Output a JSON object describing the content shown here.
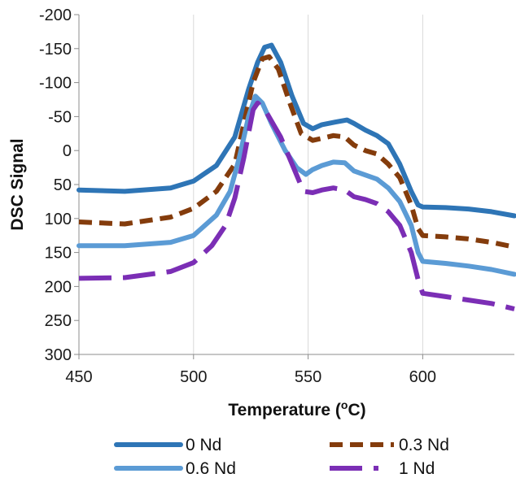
{
  "chart_data": {
    "type": "line",
    "title": "",
    "xlabel": "Temperature (",
    "xlabel_sup": "o",
    "xlabel_tail": "C)",
    "ylabel": "DSC Signal",
    "xlim": [
      450,
      640
    ],
    "ylim": [
      -200,
      300
    ],
    "y_inverted": true,
    "xticks": [
      450,
      500,
      550,
      600
    ],
    "xtick_labels": [
      "450",
      "500",
      "550",
      "600"
    ],
    "yticks": [
      -200,
      -150,
      -100,
      -50,
      0,
      50,
      100,
      150,
      200,
      250,
      300
    ],
    "ytick_labels": [
      "-200",
      "-150",
      "-100",
      "-50",
      "0",
      "50",
      "100",
      "150",
      "200",
      "250",
      "300"
    ],
    "grid": "vertical",
    "legend_placement": "bottom",
    "series": [
      {
        "name": "0 Nd",
        "color": "#2E75B6",
        "style": "solid",
        "x": [
          450,
          470,
          490,
          500,
          510,
          518,
          524,
          528,
          531,
          534,
          538,
          543,
          548,
          552,
          556,
          562,
          567,
          570,
          575,
          580,
          585,
          590,
          595,
          598,
          600,
          610,
          620,
          630,
          640
        ],
        "y": [
          58,
          60,
          55,
          45,
          22,
          -20,
          -90,
          -130,
          -152,
          -155,
          -130,
          -80,
          -40,
          -32,
          -38,
          -42,
          -45,
          -40,
          -30,
          -22,
          -10,
          20,
          60,
          80,
          83,
          84,
          86,
          90,
          96
        ]
      },
      {
        "name": "0.3 Nd",
        "color": "#843C0C",
        "style": "dashed",
        "x": [
          450,
          470,
          490,
          500,
          510,
          518,
          522,
          526,
          530,
          533,
          537,
          542,
          547,
          552,
          556,
          561,
          566,
          570,
          575,
          580,
          585,
          590,
          595,
          598,
          600,
          610,
          620,
          630,
          640
        ],
        "y": [
          105,
          108,
          98,
          85,
          60,
          20,
          -40,
          -100,
          -135,
          -138,
          -120,
          -70,
          -25,
          -15,
          -18,
          -22,
          -20,
          -8,
          0,
          5,
          20,
          40,
          80,
          115,
          125,
          127,
          130,
          135,
          142
        ]
      },
      {
        "name": "0.6 Nd",
        "color": "#5B9BD5",
        "style": "solid",
        "x": [
          450,
          470,
          490,
          500,
          510,
          516,
          520,
          524,
          527,
          530,
          534,
          540,
          545,
          549,
          552,
          556,
          561,
          566,
          570,
          575,
          580,
          585,
          590,
          595,
          598,
          600,
          610,
          620,
          630,
          640
        ],
        "y": [
          140,
          140,
          135,
          125,
          95,
          60,
          10,
          -50,
          -80,
          -70,
          -40,
          0,
          25,
          35,
          28,
          22,
          17,
          18,
          30,
          36,
          42,
          55,
          75,
          110,
          150,
          163,
          166,
          170,
          175,
          182
        ]
      },
      {
        "name": "1 Nd",
        "color": "#7B2EB5",
        "style": "dashed",
        "x": [
          450,
          470,
          490,
          500,
          508,
          514,
          518,
          522,
          526,
          528,
          532,
          538,
          543,
          548,
          552,
          556,
          561,
          566,
          570,
          575,
          580,
          585,
          590,
          595,
          598,
          600,
          610,
          620,
          630,
          640
        ],
        "y": [
          188,
          187,
          178,
          165,
          140,
          110,
          70,
          10,
          -60,
          -70,
          -55,
          -20,
          20,
          60,
          62,
          58,
          55,
          58,
          68,
          72,
          78,
          90,
          110,
          150,
          190,
          210,
          215,
          220,
          225,
          233
        ]
      }
    ]
  }
}
